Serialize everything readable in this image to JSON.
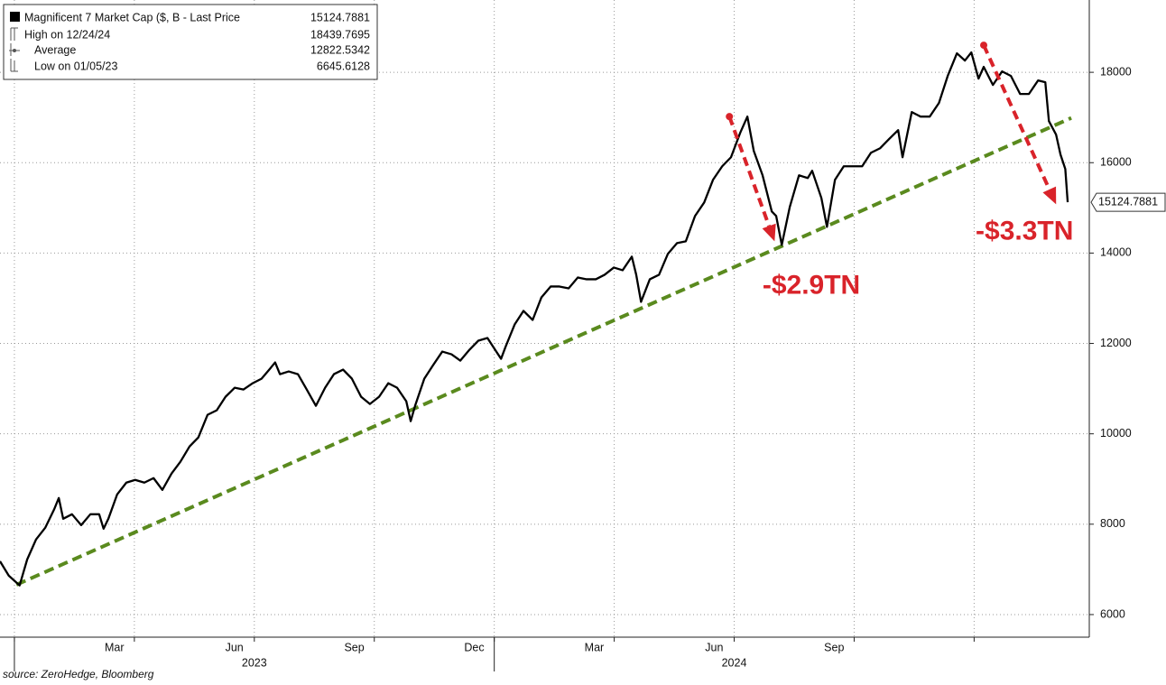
{
  "chart_data": {
    "type": "line",
    "x": [
      -0.36,
      -0.14,
      0.13,
      0.32,
      0.54,
      0.77,
      0.99,
      1.11,
      1.22,
      1.44,
      1.67,
      1.9,
      2.12,
      2.23,
      2.35,
      2.57,
      2.8,
      3.02,
      3.25,
      3.48,
      3.7,
      3.93,
      4.15,
      4.38,
      4.6,
      4.83,
      5.06,
      5.28,
      5.51,
      5.73,
      5.96,
      6.18,
      6.41,
      6.52,
      6.64,
      6.86,
      7.09,
      7.31,
      7.54,
      7.77,
      7.99,
      8.22,
      8.44,
      8.67,
      8.89,
      9.12,
      9.35,
      9.57,
      9.8,
      9.91,
      10.02,
      10.25,
      10.47,
      10.7,
      10.93,
      11.15,
      11.38,
      11.6,
      11.83,
      12.05,
      12.17,
      12.28,
      12.51,
      12.73,
      12.96,
      13.18,
      13.41,
      13.63,
      13.86,
      14.09,
      14.31,
      14.54,
      14.76,
      14.99,
      15.21,
      15.44,
      15.55,
      15.67,
      15.89,
      16.12,
      16.34,
      16.57,
      16.79,
      17.02,
      17.25,
      17.47,
      17.7,
      17.92,
      18.15,
      18.33,
      18.49,
      18.71,
      18.94,
      19.05,
      19.19,
      19.39,
      19.62,
      19.84,
      19.95,
      20.18,
      20.32,
      20.52,
      20.74,
      20.97,
      21.2,
      21.42,
      21.65,
      21.87,
      22.1,
      22.21,
      22.44,
      22.66,
      22.89,
      23.12,
      23.34,
      23.57,
      23.77,
      23.93,
      24.11,
      24.24,
      24.47,
      24.7,
      24.92,
      25.15,
      25.37,
      25.6,
      25.78,
      25.87,
      26.05,
      26.16,
      26.28,
      26.34
    ],
    "series": [
      {
        "name": "Magnificent 7 Market Cap ($, B - Last Price",
        "color": "#000000",
        "values": [
          7180,
          6860,
          6645.6128,
          7220,
          7660,
          7920,
          8320,
          8580,
          8120,
          8220,
          7980,
          8220,
          8220,
          7900,
          8120,
          8660,
          8920,
          8980,
          8920,
          9020,
          8760,
          9120,
          9380,
          9720,
          9920,
          10420,
          10520,
          10820,
          11020,
          10980,
          11120,
          11220,
          11460,
          11580,
          11320,
          11380,
          11320,
          10980,
          10620,
          11020,
          11320,
          11420,
          11220,
          10820,
          10660,
          10820,
          11120,
          11020,
          10720,
          10280,
          10620,
          11220,
          11520,
          11820,
          11760,
          11620,
          11860,
          12060,
          12120,
          11820,
          11660,
          11920,
          12420,
          12720,
          12520,
          13020,
          13260,
          13260,
          13220,
          13460,
          13420,
          13420,
          13520,
          13680,
          13620,
          13920,
          13520,
          12920,
          13420,
          13520,
          13980,
          14220,
          14260,
          14820,
          15120,
          15620,
          15920,
          16120,
          16660,
          17020,
          16260,
          15720,
          14920,
          14820,
          14180,
          15020,
          15720,
          15660,
          15820,
          15220,
          14580,
          15620,
          15920,
          15920,
          15920,
          16220,
          16320,
          16520,
          16720,
          16120,
          17120,
          17020,
          17020,
          17320,
          17920,
          18420,
          18260,
          18439.7695,
          17860,
          18120,
          17720,
          18020,
          17920,
          17520,
          17520,
          17820,
          17780,
          16920,
          16620,
          16180,
          15860,
          15124.7881
        ]
      }
    ],
    "xlim": [
      -0.36,
      26.88
    ],
    "ylim": [
      5500,
      19600
    ],
    "yticks": [
      6000,
      8000,
      10000,
      12000,
      14000,
      16000,
      18000
    ],
    "xticks": [
      {
        "value": 2.5,
        "label": "Mar"
      },
      {
        "value": 5.5,
        "label": "Jun"
      },
      {
        "value": 8.5,
        "label": "Sep"
      },
      {
        "value": 11.5,
        "label": "Dec"
      },
      {
        "value": 14.5,
        "label": "Mar"
      },
      {
        "value": 17.5,
        "label": "Jun"
      },
      {
        "value": 20.5,
        "label": "Sep"
      }
    ],
    "year_labels": [
      {
        "value": 6,
        "label": "2023"
      },
      {
        "value": 18,
        "label": "2024"
      }
    ],
    "xgrid": [
      0,
      3,
      6,
      9,
      12,
      15,
      18,
      21,
      24
    ],
    "year_ticks": [
      0,
      12
    ],
    "grid": true,
    "y_axis_side": "right",
    "legend": {
      "position": "upper left",
      "stats": [
        {
          "label": "Magnificent 7 Market Cap ($, B - Last Price",
          "value": 15124.7881
        },
        {
          "label": "High on 12/24/24",
          "value": 18439.7695
        },
        {
          "label": "Average",
          "value": 12822.5342
        },
        {
          "label": "Low on 01/05/23",
          "value": 6645.6128
        }
      ]
    },
    "last_price_label": 15124.7881,
    "trendline": {
      "color": "#5a8a1e",
      "x": [
        0.05,
        26.43
      ],
      "y": [
        6660,
        16990
      ]
    },
    "arrows": [
      {
        "color": "#d9232a",
        "x": [
          17.88,
          19.01
        ],
        "y": [
          17020,
          14260
        ]
      },
      {
        "color": "#d9232a",
        "x": [
          24.24,
          26.05
        ],
        "y": [
          18600,
          15080
        ]
      }
    ],
    "annotations": [
      {
        "text": "-$2.9TN",
        "x": 19.93,
        "y": 13260,
        "color": "#d9232a"
      },
      {
        "text": "-$3.3TN",
        "x": 25.26,
        "y": 14460,
        "color": "#d9232a"
      }
    ],
    "source": "source: ZeroHedge, Bloomberg"
  }
}
